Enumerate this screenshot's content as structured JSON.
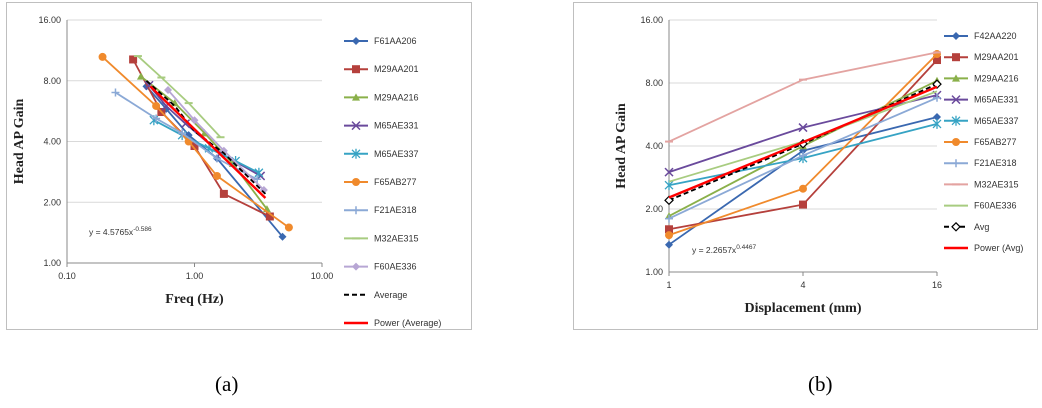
{
  "captions": {
    "a": "(a)",
    "b": "(b)"
  },
  "chart_data": [
    {
      "type": "line",
      "panel": "a",
      "xlabel": "Freq (Hz)",
      "ylabel": "Head AP Gain",
      "xscale": "log",
      "yscale": "log",
      "xlim": [
        0.1,
        10
      ],
      "ylim": [
        1,
        16
      ],
      "xticks": [
        0.1,
        1,
        10
      ],
      "xtick_labels": [
        "0.10",
        "1.00",
        "10.00"
      ],
      "yticks": [
        1,
        2,
        4,
        8,
        16
      ],
      "ytick_labels": [
        "1.00",
        "2.00",
        "4.00",
        "8.00",
        "16.00"
      ],
      "grid": "horizontal",
      "legend": "right",
      "annotation": {
        "text": "y = 4.5765x",
        "exponent": "-0.586"
      },
      "series": [
        {
          "name": "F61AA206",
          "color": "#3a68b0",
          "marker": "diamond",
          "dash": false,
          "points": [
            [
              0.42,
              7.5
            ],
            [
              0.6,
              5.8
            ],
            [
              0.9,
              4.3
            ],
            [
              1.5,
              3.3
            ],
            [
              4.9,
              1.35
            ]
          ]
        },
        {
          "name": "M29AA201",
          "color": "#b5403c",
          "marker": "square",
          "dash": false,
          "points": [
            [
              0.33,
              10.2
            ],
            [
              0.55,
              5.6
            ],
            [
              1.0,
              3.8
            ],
            [
              1.7,
              2.2
            ],
            [
              3.9,
              1.7
            ]
          ]
        },
        {
          "name": "M29AA216",
          "color": "#8ab04a",
          "marker": "triangle",
          "dash": false,
          "points": [
            [
              0.38,
              8.4
            ],
            [
              0.7,
              6.2
            ],
            [
              1.2,
              4.4
            ],
            [
              2.0,
              3.1
            ],
            [
              3.7,
              1.85
            ]
          ]
        },
        {
          "name": "M65AE331",
          "color": "#6a4a9c",
          "marker": "x",
          "dash": false,
          "points": [
            [
              0.44,
              7.6
            ],
            [
              0.6,
              6.0
            ],
            [
              0.85,
              4.9
            ],
            [
              1.6,
              3.5
            ],
            [
              3.3,
              2.7
            ]
          ]
        },
        {
          "name": "M65AE337",
          "color": "#36a3c4",
          "marker": "star",
          "dash": false,
          "points": [
            [
              0.48,
              5.1
            ],
            [
              0.8,
              4.3
            ],
            [
              1.3,
              3.7
            ],
            [
              2.1,
              3.2
            ],
            [
              3.2,
              2.8
            ]
          ]
        },
        {
          "name": "F65AB277",
          "color": "#f08a2c",
          "marker": "circle",
          "dash": false,
          "points": [
            [
              0.19,
              10.5
            ],
            [
              0.5,
              6.0
            ],
            [
              0.9,
              4.0
            ],
            [
              1.5,
              2.7
            ],
            [
              5.5,
              1.5
            ]
          ]
        },
        {
          "name": "F21AE318",
          "color": "#8ba9d6",
          "marker": "plus",
          "dash": false,
          "points": [
            [
              0.24,
              7.0
            ],
            [
              0.5,
              5.2
            ],
            [
              0.8,
              4.4
            ],
            [
              1.5,
              3.3
            ],
            [
              3.1,
              2.6
            ]
          ]
        },
        {
          "name": "M32AE315",
          "color": "#a8cc80",
          "marker": "dash",
          "dash": false,
          "points": [
            [
              0.36,
              10.6
            ],
            [
              0.55,
              8.3
            ],
            [
              0.9,
              6.2
            ],
            [
              1.6,
              4.2
            ]
          ]
        },
        {
          "name": "F60AE336",
          "color": "#b7a6d4",
          "marker": "diamond",
          "dash": false,
          "points": [
            [
              0.62,
              7.2
            ],
            [
              1.0,
              5.1
            ],
            [
              1.7,
              3.6
            ],
            [
              3.5,
              2.3
            ]
          ]
        },
        {
          "name": "Average",
          "color": "#000000",
          "marker": "none",
          "dash": true,
          "points": [
            [
              0.42,
              8.0
            ],
            [
              0.7,
              6.0
            ],
            [
              1.0,
              4.5
            ],
            [
              1.7,
              3.5
            ],
            [
              3.6,
              2.2
            ]
          ]
        },
        {
          "name": "Power (Average)",
          "color": "#ff0000",
          "marker": "none",
          "dash": false,
          "points": [
            [
              0.45,
              7.5
            ],
            [
              3.6,
              2.1
            ]
          ]
        }
      ]
    },
    {
      "type": "line",
      "panel": "b",
      "xlabel": "Displacement (mm)",
      "ylabel": "Head AP Gain",
      "xscale": "log",
      "yscale": "log",
      "xlim": [
        1,
        16
      ],
      "ylim": [
        1,
        16
      ],
      "xticks": [
        1,
        4,
        16
      ],
      "xtick_labels": [
        "1",
        "4",
        "16"
      ],
      "yticks": [
        1,
        2,
        4,
        8,
        16
      ],
      "ytick_labels": [
        "1.00",
        "2.00",
        "4.00",
        "8.00",
        "16.00"
      ],
      "grid": "horizontal",
      "legend": "right",
      "annotation": {
        "text": "y = 2.2657x",
        "exponent": "0.4467"
      },
      "series": [
        {
          "name": "F42AA220",
          "color": "#3a68b0",
          "marker": "diamond",
          "dash": false,
          "points": [
            [
              1,
              1.35
            ],
            [
              4,
              3.8
            ],
            [
              16,
              5.5
            ]
          ]
        },
        {
          "name": "M29AA201",
          "color": "#b5403c",
          "marker": "square",
          "dash": false,
          "points": [
            [
              1,
              1.6
            ],
            [
              4,
              2.1
            ],
            [
              16,
              10.3
            ]
          ]
        },
        {
          "name": "M29AA216",
          "color": "#8ab04a",
          "marker": "triangle",
          "dash": false,
          "points": [
            [
              1,
              1.85
            ],
            [
              4,
              4.0
            ],
            [
              16,
              8.2
            ]
          ]
        },
        {
          "name": "M65AE331",
          "color": "#6a4a9c",
          "marker": "x",
          "dash": false,
          "points": [
            [
              1,
              3.0
            ],
            [
              4,
              4.9
            ],
            [
              16,
              7.0
            ]
          ]
        },
        {
          "name": "M65AE337",
          "color": "#36a3c4",
          "marker": "star",
          "dash": false,
          "points": [
            [
              1,
              2.6
            ],
            [
              4,
              3.5
            ],
            [
              16,
              5.1
            ]
          ]
        },
        {
          "name": "F65AB277",
          "color": "#f08a2c",
          "marker": "circle",
          "dash": false,
          "points": [
            [
              1,
              1.5
            ],
            [
              4,
              2.5
            ],
            [
              16,
              11.0
            ]
          ]
        },
        {
          "name": "F21AE318",
          "color": "#8ba9d6",
          "marker": "plus",
          "dash": false,
          "points": [
            [
              1,
              1.8
            ],
            [
              4,
              3.6
            ],
            [
              16,
              6.8
            ]
          ]
        },
        {
          "name": "M32AE315",
          "color": "#e3a3a1",
          "marker": "dash",
          "dash": false,
          "points": [
            [
              1,
              4.2
            ],
            [
              4,
              8.3
            ],
            [
              16,
              11.2
            ]
          ]
        },
        {
          "name": "F60AE336",
          "color": "#a8cc80",
          "marker": "none",
          "dash": false,
          "points": [
            [
              1,
              2.7
            ],
            [
              4,
              4.2
            ],
            [
              16,
              7.3
            ]
          ]
        },
        {
          "name": "Avg",
          "color": "#000000",
          "marker": "diamond-open",
          "dash": true,
          "points": [
            [
              1,
              2.2
            ],
            [
              4,
              4.1
            ],
            [
              16,
              7.9
            ]
          ]
        },
        {
          "name": "Power (Avg)",
          "color": "#ff0000",
          "marker": "none",
          "dash": false,
          "points": [
            [
              1,
              2.27
            ],
            [
              4,
              4.17
            ],
            [
              16,
              7.67
            ]
          ]
        }
      ]
    }
  ]
}
